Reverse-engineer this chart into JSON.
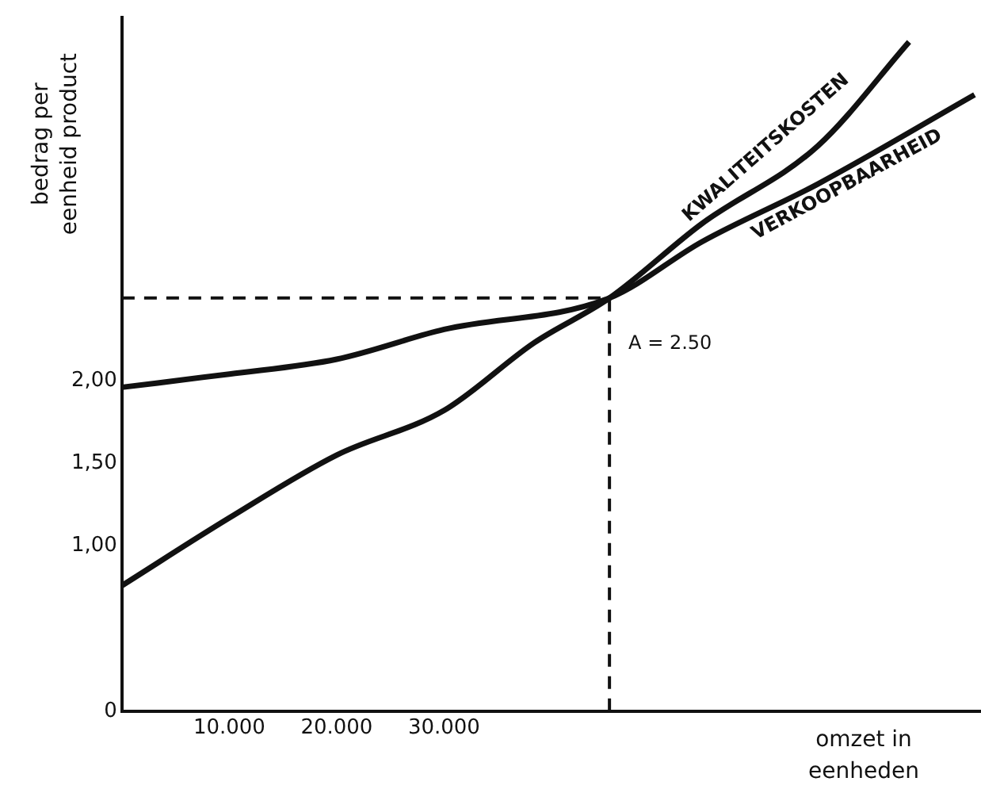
{
  "chart_data": {
    "type": "line",
    "xlabel": "omzet in eenheden",
    "ylabel": "bedrag per eenheid product",
    "xlim": [
      0,
      80000
    ],
    "xticks": [
      {
        "value": 10000,
        "label": "10.000"
      },
      {
        "value": 20000,
        "label": "20.000"
      },
      {
        "value": 30000,
        "label": "30.000"
      }
    ],
    "ylim": [
      0,
      4.2
    ],
    "yticks": [
      0,
      {
        "value": 1,
        "label": "1,00"
      },
      {
        "value": 1.5,
        "label": "1,50"
      },
      {
        "value": 2,
        "label": "2,00"
      }
    ],
    "series": [
      {
        "name": "KWALITEITSKOSTEN",
        "color": "#111111",
        "x": [
          0,
          10000,
          20000,
          30000,
          38400,
          45400,
          54000,
          64800,
          73300
        ],
        "values": [
          0.76,
          1.17,
          1.55,
          1.82,
          2.23,
          2.5,
          2.95,
          3.42,
          4.05
        ]
      },
      {
        "name": "VERKOOPBAARHEID",
        "color": "#111111",
        "x": [
          0,
          10000,
          20000,
          30000,
          45400,
          54000,
          64800,
          79400
        ],
        "values": [
          1.96,
          2.04,
          2.13,
          2.31,
          2.5,
          2.84,
          3.19,
          3.73
        ]
      }
    ],
    "ref_lines": [
      {
        "axis": "y",
        "value": 2.5,
        "label": "A = 2.50",
        "line_style": "dashed"
      },
      {
        "axis": "x",
        "value": 45400,
        "label": null,
        "line_style": "dashed"
      }
    ],
    "grid": false,
    "legend": false,
    "marker": "none",
    "line_style": "solid"
  }
}
